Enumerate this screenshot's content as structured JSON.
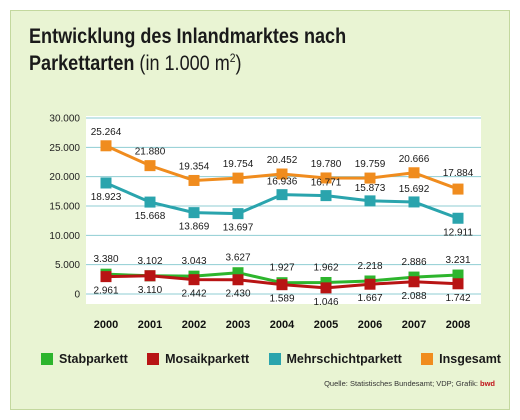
{
  "title_line1": "Entwicklung des Inlandmarktes nach",
  "title_line2": "Parkettarten",
  "title_unit": "(in 1.000 m",
  "title_unit_sup": "2",
  "title_unit_close": ")",
  "source_prefix": "Quelle: Statistisches Bundesamt; VDP; Grafik:",
  "source_brand": "bwd",
  "chart_data": {
    "type": "line",
    "x": [
      "2000",
      "2001",
      "2002",
      "2003",
      "2004",
      "2005",
      "2006",
      "2007",
      "2008"
    ],
    "ylim": [
      0,
      30000
    ],
    "yticks": [
      "0",
      "5.000",
      "10.000",
      "15.000",
      "20.000",
      "25.000",
      "30.000"
    ],
    "grid": true,
    "legend_position": "bottom",
    "series": [
      {
        "name": "Stabparkett",
        "color": "#2db52d",
        "values": [
          3380,
          3102,
          3043,
          3627,
          1927,
          1962,
          2218,
          2886,
          3231
        ],
        "labels": [
          "3.380",
          "3.102",
          "3.043",
          "3.627",
          "1.927",
          "1.962",
          "2.218",
          "2.886",
          "3.231"
        ]
      },
      {
        "name": "Mosaikparkett",
        "color": "#b81414",
        "values": [
          2961,
          3110,
          2442,
          2430,
          1589,
          1046,
          1667,
          2088,
          1742
        ],
        "labels": [
          "2.961",
          "3.110",
          "2.442",
          "2.430",
          "1.589",
          "1.046",
          "1.667",
          "2.088",
          "1.742"
        ]
      },
      {
        "name": "Mehrschichtparkett",
        "color": "#2aa4ad",
        "values": [
          18923,
          15668,
          13869,
          13697,
          16936,
          16771,
          15873,
          15692,
          12911
        ],
        "labels": [
          "18.923",
          "15.668",
          "13.869",
          "13.697",
          "16.936",
          "16.771",
          "15.873",
          "15.692",
          "12.911"
        ]
      },
      {
        "name": "Insgesamt",
        "color": "#f08c1e",
        "values": [
          25264,
          21880,
          19354,
          19754,
          20452,
          19780,
          19759,
          20666,
          17884
        ],
        "labels": [
          "25.264",
          "21.880",
          "19.354",
          "19.754",
          "20.452",
          "19.780",
          "19.759",
          "20.666",
          "17.884"
        ]
      }
    ]
  }
}
